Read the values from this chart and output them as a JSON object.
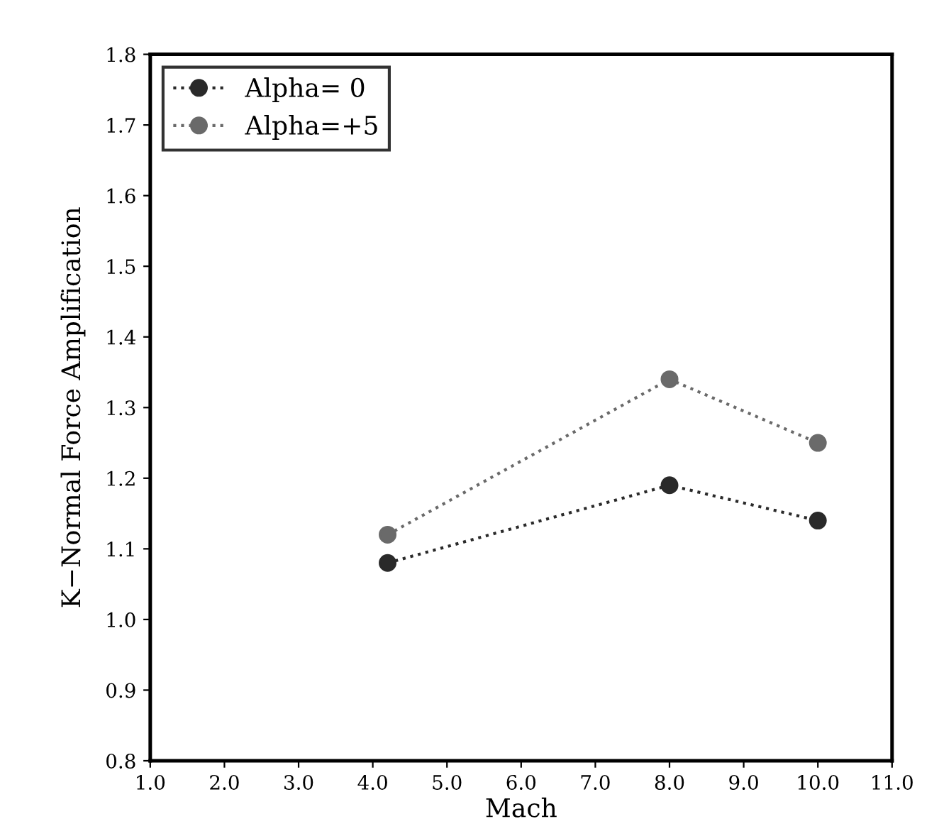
{
  "chart_data": {
    "type": "line",
    "xlabel": "Mach",
    "ylabel": "K−Normal Force Amplification",
    "x": [
      4.2,
      8.0,
      10.0
    ],
    "series": [
      {
        "name": "Alpha= 0",
        "color": "#2a2a2a",
        "values": [
          1.08,
          1.19,
          1.14
        ]
      },
      {
        "name": "Alpha=+5",
        "color": "#6a6a6a",
        "values": [
          1.12,
          1.34,
          1.25
        ]
      }
    ],
    "xlim": [
      1.0,
      11.0
    ],
    "xticks": [
      {
        "value": 1,
        "label": "1.0"
      },
      {
        "value": 2,
        "label": "2.0"
      },
      {
        "value": 3,
        "label": "3.0"
      },
      {
        "value": 4,
        "label": "4.0"
      },
      {
        "value": 5,
        "label": "5.0"
      },
      {
        "value": 6,
        "label": "6.0"
      },
      {
        "value": 7,
        "label": "7.0"
      },
      {
        "value": 8,
        "label": "8.0"
      },
      {
        "value": 9,
        "label": "9.0"
      },
      {
        "value": 10,
        "label": "10.0"
      },
      {
        "value": 11,
        "label": "11.0"
      }
    ],
    "ylim": [
      0.8,
      1.8
    ],
    "yticks": [
      0.8,
      0.9,
      {
        "value": 1,
        "label": "1.0"
      },
      1.1,
      1.2,
      1.3,
      1.4,
      1.5,
      1.6,
      1.7,
      1.8
    ],
    "marker": "circle",
    "line_style": "dotted",
    "legend": "top left",
    "grid": false
  }
}
